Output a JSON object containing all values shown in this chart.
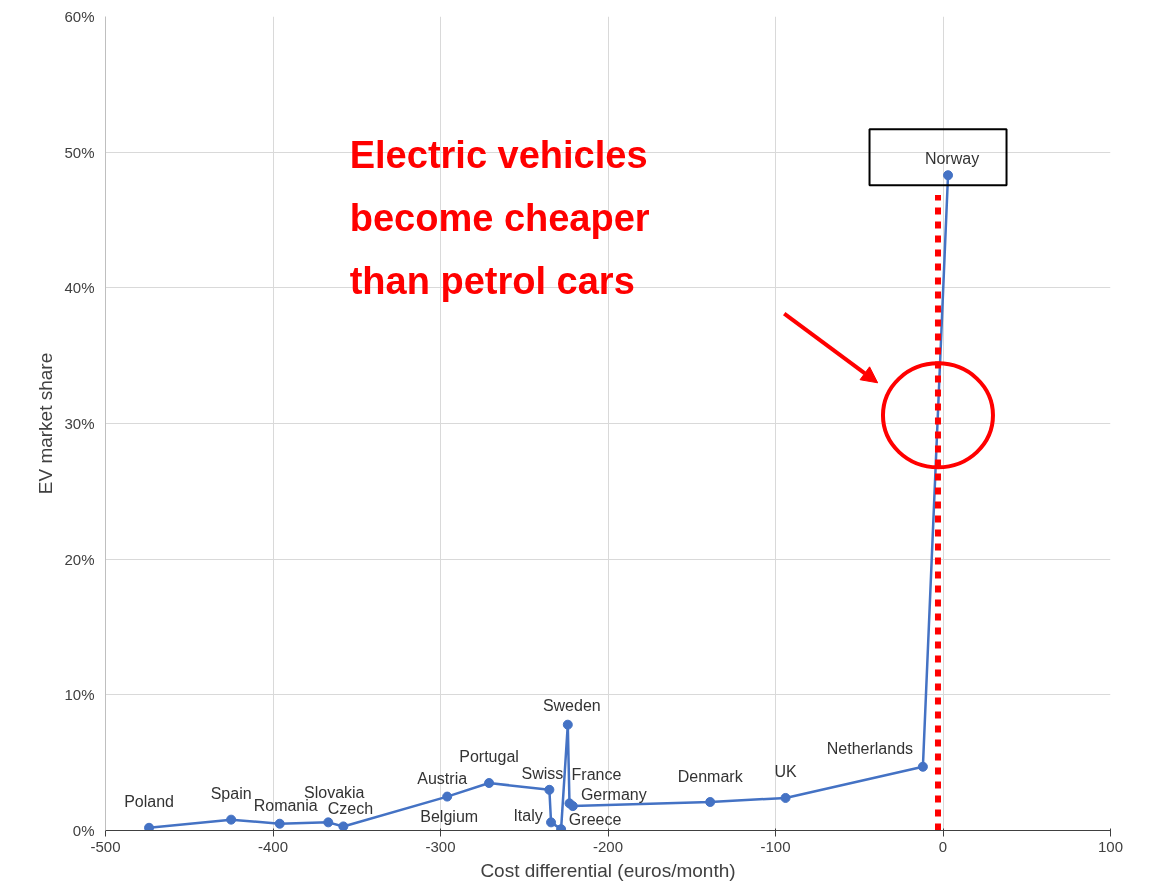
{
  "chart_data": {
    "type": "line",
    "xlabel": "Cost differential (euros/month)",
    "ylabel": "EV market share",
    "x": [
      -474,
      -425,
      -396,
      -367,
      -358,
      -296,
      -271,
      -235,
      -234,
      -228,
      -224,
      -223,
      -221,
      -139,
      -94,
      -12,
      3
    ],
    "series": [
      {
        "color": "#4472c4",
        "values": [
          0.2,
          0.8,
          0.5,
          0.6,
          0.3,
          2.5,
          3.5,
          3.0,
          0.6,
          0.1,
          7.8,
          2.0,
          1.8,
          2.1,
          2.4,
          4.7,
          48.3
        ]
      }
    ],
    "xlim": [
      -500,
      100
    ],
    "xticks": [
      -500,
      -400,
      -300,
      -200,
      -100,
      0,
      100
    ],
    "ylim": [
      0,
      60
    ],
    "yticks": [
      {
        "value": 0,
        "label": "0%"
      },
      {
        "value": 10,
        "label": "10%"
      },
      {
        "value": 20,
        "label": "20%"
      },
      {
        "value": 30,
        "label": "30%"
      },
      {
        "value": 40,
        "label": "40%"
      },
      {
        "value": 50,
        "label": "50%"
      },
      {
        "value": 60,
        "label": "60%"
      }
    ],
    "grid": true,
    "marker": "circle",
    "line_style": "solid",
    "ref_lines": [
      {
        "axis": "x",
        "value": -3,
        "color": "#ff0000",
        "line_style": "dotted"
      }
    ],
    "annotations": [
      {
        "text": "Poland",
        "x": -474,
        "y": 0.2
      },
      {
        "text": "Spain",
        "x": -425,
        "y": 0.8
      },
      {
        "text": "Romania",
        "x": -396,
        "y": 0.5
      },
      {
        "text": "Slovakia",
        "x": -367,
        "y": 0.6
      },
      {
        "text": "Czech",
        "x": -358,
        "y": 0.3
      },
      {
        "text": "Austria",
        "x": -296,
        "y": 2.5
      },
      {
        "text": "Belgium",
        "x": -296,
        "y": 2.5
      },
      {
        "text": "Portugal",
        "x": -271,
        "y": 3.5
      },
      {
        "text": "Swiss",
        "x": -235,
        "y": 3.0
      },
      {
        "text": "Italy",
        "x": -234,
        "y": 0.6
      },
      {
        "text": "Greece",
        "x": -228,
        "y": 0.1
      },
      {
        "text": "Sweden",
        "x": -224,
        "y": 7.8
      },
      {
        "text": "France",
        "x": -223,
        "y": 2.0
      },
      {
        "text": "Germany",
        "x": -221,
        "y": 1.8
      },
      {
        "text": "Denmark",
        "x": -139,
        "y": 2.1
      },
      {
        "text": "UK",
        "x": -94,
        "y": 2.4
      },
      {
        "text": "Netherlands",
        "x": -12,
        "y": 4.7
      },
      {
        "text": "Norway",
        "x": 3,
        "y": 48.3
      },
      "Electric vehicles\nbecome cheaper\nthan petrol cars"
    ]
  }
}
